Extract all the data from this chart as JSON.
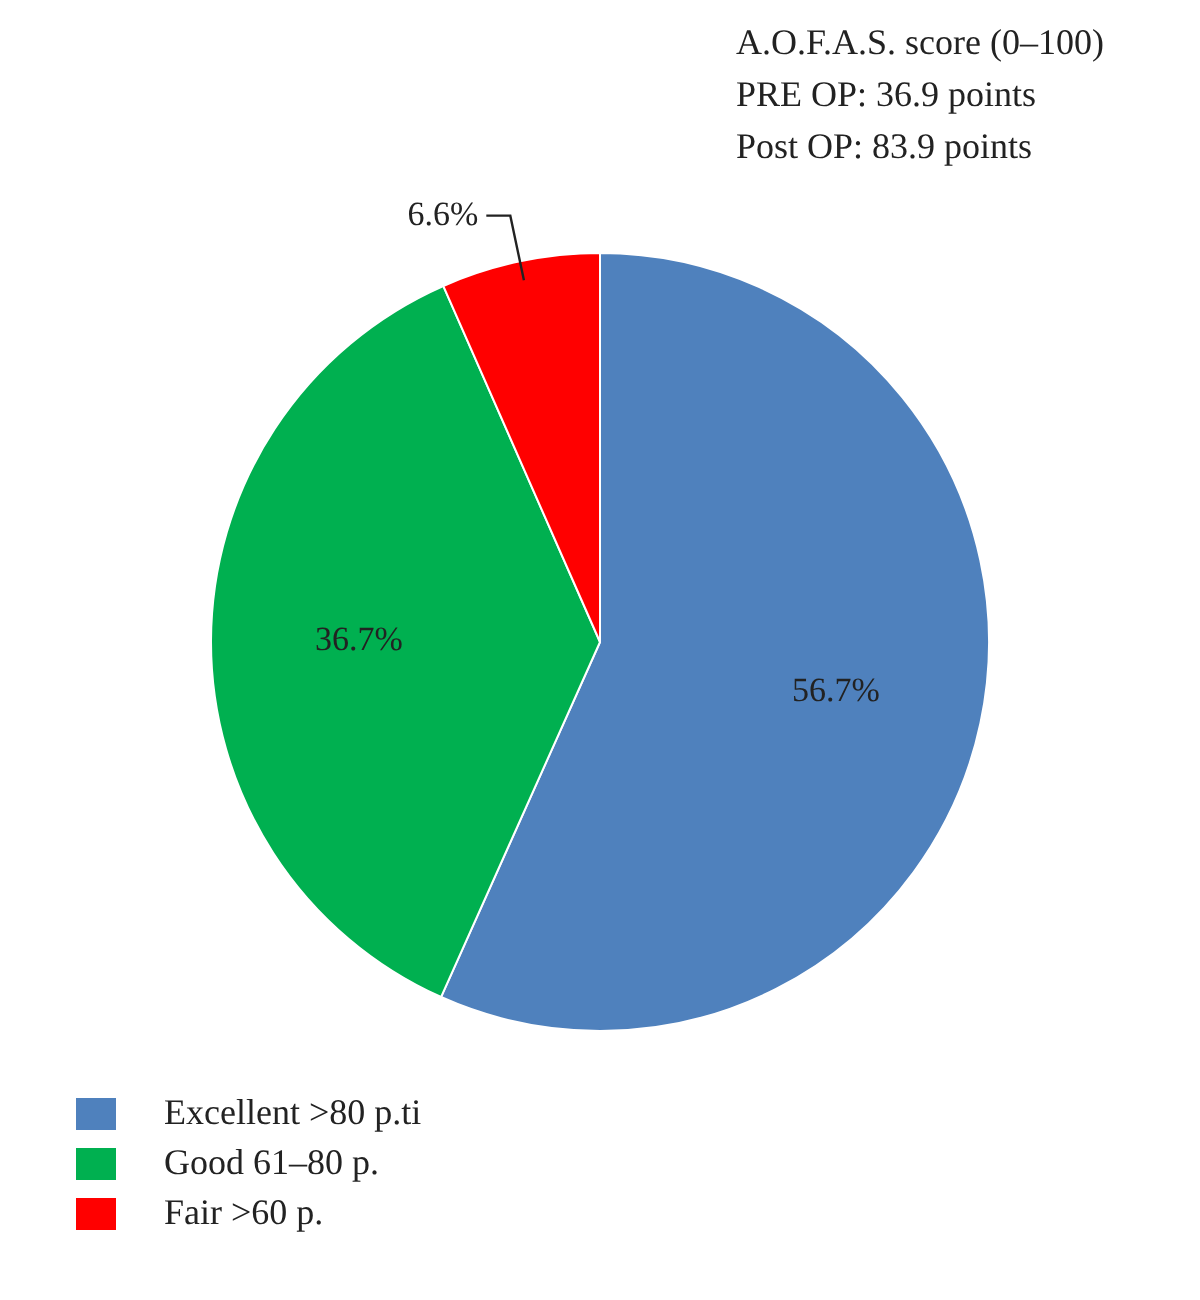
{
  "chart_data": {
    "type": "pie",
    "categories": [
      "Excellent >80 p.ti",
      "Good 61–80 p.",
      "Fair >60 p."
    ],
    "values": [
      56.7,
      36.7,
      6.6
    ],
    "colors": [
      "#4f81bd",
      "#00b050",
      "#ff0000"
    ],
    "value_labels": [
      "56.7%",
      "36.7%",
      "6.6%"
    ],
    "legend": "bottom left",
    "annotations": [
      "A.O.F.A.S. score (0–100)",
      "PRE OP: 36.9 points",
      "Post OP: 83.9 points"
    ]
  }
}
